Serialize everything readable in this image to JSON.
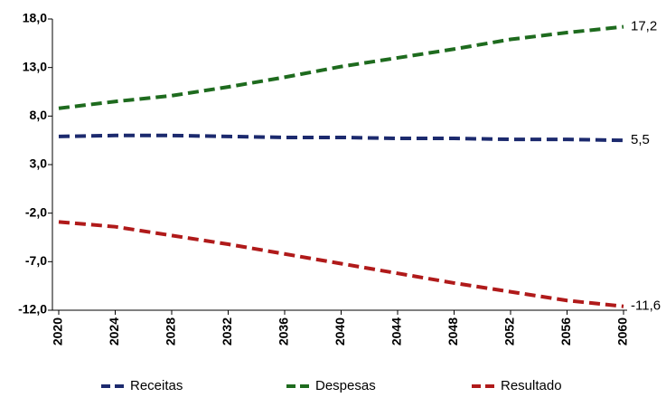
{
  "chart_data": {
    "type": "line",
    "x": [
      2020,
      2024,
      2028,
      2032,
      2036,
      2040,
      2044,
      2048,
      2052,
      2056,
      2060
    ],
    "xlim": [
      2020,
      2060
    ],
    "xticks": [
      2020,
      2024,
      2028,
      2032,
      2036,
      2040,
      2044,
      2048,
      2052,
      2056,
      2060
    ],
    "ylim": [
      -12,
      18
    ],
    "yticks": [
      {
        "value": -12,
        "label": "-12,0"
      },
      {
        "value": -7,
        "label": "-7,0"
      },
      {
        "value": -2,
        "label": "-2,0"
      },
      {
        "value": 3,
        "label": "3,0"
      },
      {
        "value": 8,
        "label": "8,0"
      },
      {
        "value": 13,
        "label": "13,0"
      },
      {
        "value": 18,
        "label": "18,0"
      }
    ],
    "series": [
      {
        "name": "Receitas",
        "color": "#1c2a6e",
        "values": [
          5.9,
          6.0,
          6.0,
          5.9,
          5.8,
          5.8,
          5.7,
          5.7,
          5.6,
          5.6,
          5.5
        ],
        "value_labels": [
          null,
          null,
          null,
          null,
          null,
          null,
          null,
          null,
          null,
          null,
          "5,5"
        ]
      },
      {
        "name": "Despesas",
        "color": "#1e6b1e",
        "values": [
          8.8,
          9.5,
          10.1,
          11.0,
          12.0,
          13.1,
          14.0,
          14.9,
          15.9,
          16.6,
          17.2
        ],
        "value_labels": [
          null,
          null,
          null,
          null,
          null,
          null,
          null,
          null,
          null,
          null,
          "17,2"
        ]
      },
      {
        "name": "Resultado",
        "color": "#b01a1a",
        "values": [
          -2.9,
          -3.4,
          -4.3,
          -5.2,
          -6.2,
          -7.2,
          -8.2,
          -9.2,
          -10.1,
          -11.0,
          -11.6
        ],
        "value_labels": [
          null,
          null,
          null,
          null,
          null,
          null,
          null,
          null,
          null,
          null,
          "-11,6"
        ]
      }
    ]
  }
}
